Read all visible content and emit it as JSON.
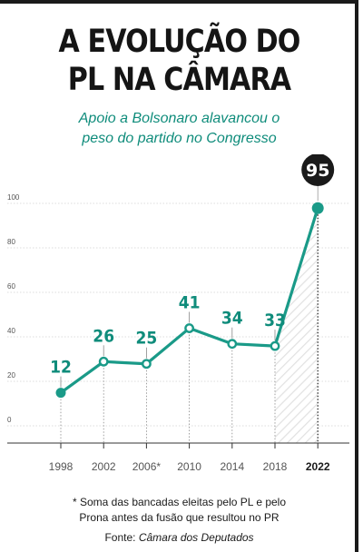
{
  "title_lines": [
    "A EVOLUÇÃO DO",
    "PL NA CÂMARA"
  ],
  "subtitle_lines": [
    "Apoio a Bolsonaro alavancou o",
    "peso do partido no Congresso"
  ],
  "footnote_lines": [
    "* Soma das bancadas eleitas pelo PL e pelo",
    "Prona antes da fusão que resultou no PR"
  ],
  "source": {
    "label": "Fonte:",
    "name": "Câmara dos Deputados"
  },
  "colors": {
    "accent": "#1a9a88",
    "label": "#0f8c7b",
    "axis": "#555555",
    "grid": "#bbbbbb",
    "highlight": "#1a1a1a"
  },
  "chart_data": {
    "type": "line",
    "title": "A EVOLUÇÃO DO PL NA CÂMARA",
    "subtitle": "Apoio a Bolsonaro alavancou o peso do partido no Congresso",
    "categories": [
      "1998",
      "2002",
      "2006*",
      "2010",
      "2014",
      "2018",
      "2022"
    ],
    "values": [
      12,
      26,
      25,
      41,
      34,
      33,
      95
    ],
    "y_ticks": [
      0,
      20,
      40,
      60,
      80,
      100
    ],
    "ylim": [
      0,
      100
    ],
    "highlight": "2022",
    "grid": true,
    "legend": "none"
  }
}
